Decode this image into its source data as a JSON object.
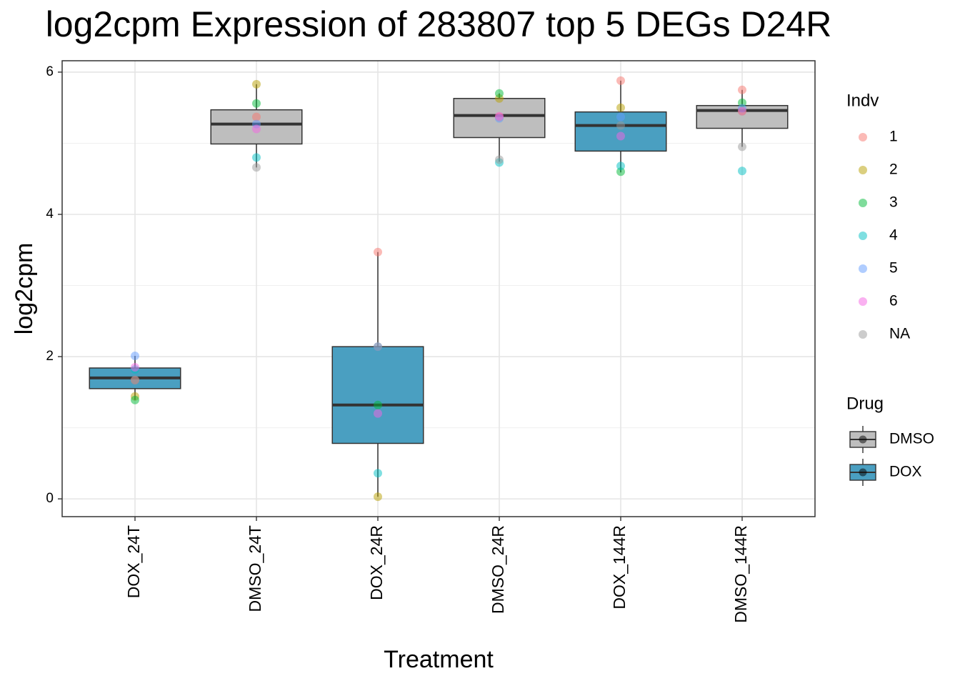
{
  "chart_data": {
    "type": "box",
    "title": "log2cpm Expression of 283807 top 5 DEGs D24R",
    "xlabel": "Treatment",
    "ylabel": "log2cpm",
    "categories": [
      "DOX_24T",
      "DMSO_24T",
      "DOX_24R",
      "DMSO_24R",
      "DOX_144R",
      "DMSO_144R"
    ],
    "drug": [
      "DOX",
      "DMSO",
      "DOX",
      "DMSO",
      "DOX",
      "DMSO"
    ],
    "boxes": [
      {
        "whisker_low": 1.39,
        "q1": 1.55,
        "median": 1.7,
        "q3": 1.84,
        "whisker_high": 2.01
      },
      {
        "whisker_low": 4.66,
        "q1": 4.99,
        "median": 5.27,
        "q3": 5.47,
        "whisker_high": 5.83
      },
      {
        "whisker_low": 0.03,
        "q1": 0.78,
        "median": 1.32,
        "q3": 2.14,
        "whisker_high": 3.47
      },
      {
        "whisker_low": 4.74,
        "q1": 5.08,
        "median": 5.39,
        "q3": 5.63,
        "whisker_high": 5.7
      },
      {
        "whisker_low": 4.59,
        "q1": 4.89,
        "median": 5.25,
        "q3": 5.44,
        "whisker_high": 5.88
      },
      {
        "whisker_low": 4.95,
        "q1": 5.21,
        "median": 5.46,
        "q3": 5.53,
        "whisker_high": 5.75
      }
    ],
    "point_legend_title": "Indv",
    "series": [
      {
        "name": "1",
        "color": "#F8766D",
        "values": [
          1.67,
          5.37,
          3.47,
          5.37,
          5.88,
          5.75
        ]
      },
      {
        "name": "2",
        "color": "#B79F00",
        "values": [
          1.44,
          5.83,
          0.03,
          5.63,
          5.5,
          5.45
        ]
      },
      {
        "name": "3",
        "color": "#00BA38",
        "values": [
          1.39,
          5.56,
          1.32,
          5.7,
          4.6,
          5.57
        ]
      },
      {
        "name": "4",
        "color": "#00BFC4",
        "values": [
          1.82,
          4.8,
          0.36,
          4.73,
          4.68,
          4.61
        ]
      },
      {
        "name": "5",
        "color": "#619CFF",
        "values": [
          2.01,
          5.27,
          2.14,
          5.35,
          5.37,
          5.49
        ]
      },
      {
        "name": "6",
        "color": "#F564E3",
        "values": [
          1.85,
          5.2,
          1.2,
          5.38,
          5.1,
          5.45
        ]
      },
      {
        "name": "NA",
        "color": "#999999",
        "values": [
          1.67,
          4.66,
          2.14,
          4.77,
          5.25,
          4.95
        ]
      }
    ],
    "fill_legend_title": "Drug",
    "fills": [
      {
        "name": "DMSO",
        "color": "#BEBEBE"
      },
      {
        "name": "DOX",
        "color": "#4A9FC1"
      }
    ],
    "ylim": [
      -0.25,
      6.16
    ],
    "yticks": [
      0,
      2,
      4,
      6
    ],
    "minor_yticks": [
      1,
      3,
      5
    ],
    "grid": true
  }
}
